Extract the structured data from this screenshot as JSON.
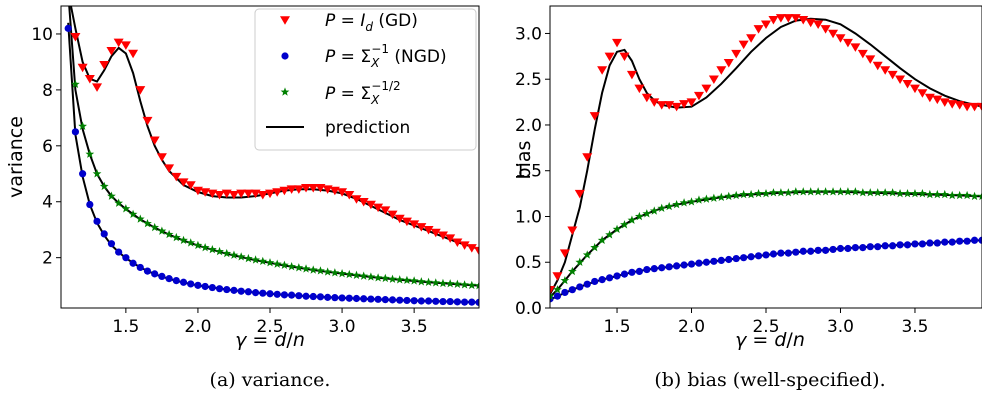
{
  "chart_data": [
    {
      "type": "scatter",
      "caption": "(a) variance.",
      "xlabel": "γ = d/n",
      "ylabel": "variance",
      "xlim": [
        1.05,
        3.95
      ],
      "ylim": [
        0.2,
        11.0
      ],
      "xticks": [
        1.5,
        2.0,
        2.5,
        3.0,
        3.5
      ],
      "yticks": [
        2,
        4,
        6,
        8,
        10
      ],
      "xtick_labels": [
        "1.5",
        "2.0",
        "2.5",
        "3.0",
        "3.5"
      ],
      "ytick_labels": [
        "2",
        "4",
        "6",
        "8",
        "10"
      ],
      "grid": false,
      "legend_position": "top-right",
      "legend": [
        {
          "label": "P = I_d (GD)",
          "main": "P = ",
          "italic": "I",
          "sub": "d",
          "rest": " (GD)",
          "marker": "triangle-down",
          "color": "#ff0000"
        },
        {
          "label": "P = Σ_X^-1 (NGD)",
          "main": "P = Σ",
          "sub": "X",
          "sup": "−1",
          "rest": " (NGD)",
          "marker": "circle",
          "color": "#0000cc"
        },
        {
          "label": "P = Σ_X^-1/2",
          "main": "P = Σ",
          "sub": "X",
          "sup": "−1/2",
          "rest": "",
          "marker": "star",
          "color": "#008000"
        },
        {
          "label": "prediction",
          "main": "prediction",
          "marker": "line",
          "color": "#000000"
        }
      ],
      "x": [
        1.1,
        1.15,
        1.2,
        1.25,
        1.3,
        1.35,
        1.4,
        1.45,
        1.5,
        1.55,
        1.6,
        1.65,
        1.7,
        1.75,
        1.8,
        1.85,
        1.9,
        1.95,
        2.0,
        2.05,
        2.1,
        2.15,
        2.2,
        2.25,
        2.3,
        2.35,
        2.4,
        2.45,
        2.5,
        2.55,
        2.6,
        2.65,
        2.7,
        2.75,
        2.8,
        2.85,
        2.9,
        2.95,
        3.0,
        3.05,
        3.1,
        3.15,
        3.2,
        3.25,
        3.3,
        3.35,
        3.4,
        3.45,
        3.5,
        3.55,
        3.6,
        3.65,
        3.7,
        3.75,
        3.8,
        3.85,
        3.9,
        3.95
      ],
      "series": [
        {
          "name": "P = I_d (GD)",
          "color": "#ff0000",
          "marker": "triangle-down",
          "values": [
            11.5,
            9.9,
            8.8,
            8.4,
            8.1,
            8.9,
            9.4,
            9.7,
            9.6,
            9.3,
            8.0,
            6.9,
            6.2,
            5.6,
            5.2,
            4.9,
            4.7,
            4.6,
            4.4,
            4.35,
            4.3,
            4.25,
            4.3,
            4.25,
            4.3,
            4.3,
            4.3,
            4.25,
            4.3,
            4.35,
            4.4,
            4.45,
            4.45,
            4.5,
            4.5,
            4.5,
            4.45,
            4.4,
            4.35,
            4.25,
            4.1,
            4.0,
            3.9,
            3.8,
            3.7,
            3.55,
            3.4,
            3.3,
            3.2,
            3.1,
            3.0,
            2.9,
            2.8,
            2.7,
            2.55,
            2.45,
            2.35,
            2.25
          ]
        },
        {
          "name": "P = Σ_X^-1 (NGD)",
          "color": "#0000cc",
          "marker": "circle",
          "values": [
            10.2,
            6.5,
            5.0,
            3.9,
            3.3,
            2.85,
            2.5,
            2.2,
            2.0,
            1.8,
            1.65,
            1.52,
            1.42,
            1.33,
            1.25,
            1.18,
            1.12,
            1.06,
            1.01,
            0.97,
            0.93,
            0.89,
            0.86,
            0.83,
            0.8,
            0.78,
            0.75,
            0.73,
            0.71,
            0.69,
            0.67,
            0.66,
            0.64,
            0.62,
            0.61,
            0.6,
            0.58,
            0.57,
            0.56,
            0.55,
            0.54,
            0.53,
            0.52,
            0.51,
            0.5,
            0.49,
            0.48,
            0.47,
            0.46,
            0.45,
            0.45,
            0.44,
            0.43,
            0.43,
            0.42,
            0.41,
            0.41,
            0.4
          ]
        },
        {
          "name": "P = Σ_X^-1/2",
          "color": "#008000",
          "marker": "star",
          "values": [
            11.3,
            8.2,
            6.7,
            5.7,
            5.0,
            4.55,
            4.2,
            3.95,
            3.75,
            3.55,
            3.38,
            3.22,
            3.08,
            2.95,
            2.83,
            2.72,
            2.62,
            2.53,
            2.44,
            2.36,
            2.29,
            2.22,
            2.15,
            2.09,
            2.03,
            1.97,
            1.92,
            1.87,
            1.82,
            1.77,
            1.73,
            1.68,
            1.64,
            1.6,
            1.56,
            1.53,
            1.49,
            1.46,
            1.43,
            1.4,
            1.37,
            1.34,
            1.31,
            1.28,
            1.26,
            1.23,
            1.21,
            1.19,
            1.17,
            1.14,
            1.12,
            1.1,
            1.08,
            1.07,
            1.05,
            1.03,
            1.01,
            1.0
          ]
        },
        {
          "name": "prediction",
          "color": "#000000",
          "marker": "line",
          "curves": [
            {
              "x": [
                1.1,
                1.15,
                1.2,
                1.25,
                1.3,
                1.35,
                1.4,
                1.45,
                1.5,
                1.55,
                1.6,
                1.65,
                1.7,
                1.75,
                1.8,
                1.9,
                2.0,
                2.1,
                2.2,
                2.3,
                2.4,
                2.5,
                2.6,
                2.7,
                2.8,
                2.9,
                3.0,
                3.1,
                3.2,
                3.3,
                3.4,
                3.5,
                3.6,
                3.7,
                3.8,
                3.9,
                3.95
              ],
              "values": [
                11.5,
                10.2,
                9.0,
                8.4,
                8.3,
                8.7,
                9.2,
                9.5,
                9.3,
                8.6,
                7.6,
                6.7,
                6.0,
                5.5,
                5.1,
                4.6,
                4.35,
                4.2,
                4.15,
                4.15,
                4.2,
                4.3,
                4.4,
                4.45,
                4.45,
                4.4,
                4.3,
                4.1,
                3.85,
                3.6,
                3.35,
                3.15,
                2.95,
                2.75,
                2.55,
                2.4,
                2.3
              ]
            },
            {
              "x": [
                1.1,
                1.15,
                1.2,
                1.25,
                1.3,
                1.35,
                1.4,
                1.45,
                1.5,
                1.6,
                1.7,
                1.8,
                1.9,
                2.0,
                2.2,
                2.4,
                2.6,
                2.8,
                3.0,
                3.2,
                3.4,
                3.6,
                3.8,
                3.95
              ],
              "values": [
                10.4,
                6.4,
                4.9,
                3.9,
                3.25,
                2.8,
                2.45,
                2.2,
                1.98,
                1.65,
                1.41,
                1.24,
                1.11,
                1.01,
                0.86,
                0.75,
                0.67,
                0.61,
                0.56,
                0.52,
                0.48,
                0.45,
                0.42,
                0.4
              ]
            },
            {
              "x": [
                1.1,
                1.15,
                1.2,
                1.25,
                1.3,
                1.35,
                1.4,
                1.45,
                1.5,
                1.6,
                1.7,
                1.8,
                1.9,
                2.0,
                2.2,
                2.4,
                2.6,
                2.8,
                3.0,
                3.2,
                3.4,
                3.6,
                3.8,
                3.95
              ],
              "values": [
                11.5,
                8.0,
                6.6,
                5.7,
                5.0,
                4.55,
                4.2,
                3.95,
                3.74,
                3.37,
                3.07,
                2.82,
                2.61,
                2.43,
                2.14,
                1.91,
                1.72,
                1.56,
                1.43,
                1.31,
                1.21,
                1.12,
                1.05,
                1.0
              ]
            }
          ]
        }
      ]
    },
    {
      "type": "scatter",
      "caption": "(b) bias (well-specified).",
      "xlabel": "γ = d/n",
      "ylabel": "bias",
      "xlim": [
        1.05,
        3.95
      ],
      "ylim": [
        0.0,
        3.3
      ],
      "xticks": [
        1.5,
        2.0,
        2.5,
        3.0,
        3.5
      ],
      "yticks": [
        0.0,
        0.5,
        1.0,
        1.5,
        2.0,
        2.5,
        3.0
      ],
      "xtick_labels": [
        "1.5",
        "2.0",
        "2.5",
        "3.0",
        "3.5"
      ],
      "ytick_labels": [
        "0.0",
        "0.5",
        "1.0",
        "1.5",
        "2.0",
        "2.5",
        "3.0"
      ],
      "grid": false,
      "x": [
        1.05,
        1.1,
        1.15,
        1.2,
        1.25,
        1.3,
        1.35,
        1.4,
        1.45,
        1.5,
        1.55,
        1.6,
        1.65,
        1.7,
        1.75,
        1.8,
        1.85,
        1.9,
        1.95,
        2.0,
        2.05,
        2.1,
        2.15,
        2.2,
        2.25,
        2.3,
        2.35,
        2.4,
        2.45,
        2.5,
        2.55,
        2.6,
        2.65,
        2.7,
        2.75,
        2.8,
        2.85,
        2.9,
        2.95,
        3.0,
        3.05,
        3.1,
        3.15,
        3.2,
        3.25,
        3.3,
        3.35,
        3.4,
        3.45,
        3.5,
        3.55,
        3.6,
        3.65,
        3.7,
        3.75,
        3.8,
        3.85,
        3.9,
        3.95
      ],
      "series": [
        {
          "name": "P = I_d (GD)",
          "color": "#ff0000",
          "marker": "triangle-down",
          "values": [
            0.2,
            0.35,
            0.6,
            0.85,
            1.25,
            1.65,
            2.1,
            2.6,
            2.75,
            2.9,
            2.75,
            2.55,
            2.4,
            2.3,
            2.25,
            2.22,
            2.22,
            2.2,
            2.23,
            2.25,
            2.32,
            2.4,
            2.5,
            2.6,
            2.68,
            2.78,
            2.88,
            2.95,
            3.05,
            3.1,
            3.15,
            3.17,
            3.17,
            3.17,
            3.15,
            3.12,
            3.1,
            3.05,
            3.0,
            2.95,
            2.9,
            2.85,
            2.78,
            2.72,
            2.65,
            2.6,
            2.55,
            2.5,
            2.45,
            2.4,
            2.35,
            2.3,
            2.28,
            2.25,
            2.23,
            2.22,
            2.2,
            2.2,
            2.2
          ]
        },
        {
          "name": "P = Σ_X^-1 (NGD)",
          "color": "#0000cc",
          "marker": "circle",
          "values": [
            0.1,
            0.13,
            0.17,
            0.2,
            0.23,
            0.26,
            0.29,
            0.31,
            0.33,
            0.35,
            0.37,
            0.39,
            0.4,
            0.42,
            0.43,
            0.44,
            0.45,
            0.46,
            0.47,
            0.48,
            0.49,
            0.5,
            0.51,
            0.52,
            0.53,
            0.54,
            0.55,
            0.56,
            0.57,
            0.58,
            0.59,
            0.6,
            0.6,
            0.61,
            0.62,
            0.62,
            0.63,
            0.63,
            0.64,
            0.65,
            0.65,
            0.66,
            0.66,
            0.67,
            0.67,
            0.68,
            0.68,
            0.69,
            0.69,
            0.7,
            0.7,
            0.71,
            0.71,
            0.72,
            0.72,
            0.73,
            0.73,
            0.74,
            0.74
          ]
        },
        {
          "name": "P = Σ_X^-1/2",
          "color": "#008000",
          "marker": "star",
          "values": [
            0.13,
            0.2,
            0.3,
            0.4,
            0.5,
            0.58,
            0.66,
            0.74,
            0.8,
            0.86,
            0.91,
            0.96,
            1.0,
            1.03,
            1.06,
            1.09,
            1.11,
            1.13,
            1.15,
            1.16,
            1.18,
            1.19,
            1.2,
            1.21,
            1.22,
            1.23,
            1.24,
            1.24,
            1.25,
            1.25,
            1.26,
            1.26,
            1.26,
            1.27,
            1.27,
            1.27,
            1.27,
            1.27,
            1.27,
            1.27,
            1.27,
            1.27,
            1.26,
            1.26,
            1.26,
            1.26,
            1.26,
            1.25,
            1.25,
            1.25,
            1.25,
            1.24,
            1.24,
            1.24,
            1.23,
            1.23,
            1.23,
            1.22,
            1.22
          ]
        },
        {
          "name": "prediction",
          "color": "#000000",
          "marker": "line",
          "curves": [
            {
              "x": [
                1.05,
                1.1,
                1.15,
                1.2,
                1.25,
                1.3,
                1.35,
                1.4,
                1.45,
                1.5,
                1.55,
                1.6,
                1.65,
                1.7,
                1.75,
                1.8,
                1.9,
                2.0,
                2.1,
                2.2,
                2.3,
                2.4,
                2.5,
                2.6,
                2.7,
                2.8,
                2.9,
                3.0,
                3.1,
                3.2,
                3.3,
                3.4,
                3.5,
                3.6,
                3.7,
                3.8,
                3.9,
                3.95
              ],
              "values": [
                0.15,
                0.3,
                0.5,
                0.8,
                1.1,
                1.5,
                1.95,
                2.35,
                2.65,
                2.8,
                2.82,
                2.7,
                2.5,
                2.35,
                2.27,
                2.22,
                2.19,
                2.2,
                2.3,
                2.45,
                2.62,
                2.8,
                2.95,
                3.07,
                3.14,
                3.16,
                3.15,
                3.1,
                3.0,
                2.88,
                2.75,
                2.62,
                2.5,
                2.4,
                2.32,
                2.26,
                2.22,
                2.2
              ]
            },
            {
              "x": [
                1.05,
                1.1,
                1.2,
                1.3,
                1.4,
                1.5,
                1.6,
                1.7,
                1.8,
                1.9,
                2.0,
                2.2,
                2.4,
                2.6,
                2.8,
                3.0,
                3.2,
                3.4,
                3.6,
                3.8,
                3.95
              ],
              "values": [
                0.09,
                0.13,
                0.2,
                0.26,
                0.31,
                0.35,
                0.39,
                0.42,
                0.44,
                0.46,
                0.48,
                0.52,
                0.56,
                0.6,
                0.62,
                0.65,
                0.67,
                0.69,
                0.71,
                0.73,
                0.74
              ]
            },
            {
              "x": [
                1.05,
                1.1,
                1.2,
                1.3,
                1.4,
                1.5,
                1.6,
                1.7,
                1.8,
                1.9,
                2.0,
                2.2,
                2.4,
                2.6,
                2.8,
                3.0,
                3.2,
                3.4,
                3.6,
                3.8,
                3.95
              ],
              "values": [
                0.12,
                0.2,
                0.4,
                0.58,
                0.74,
                0.86,
                0.96,
                1.03,
                1.09,
                1.13,
                1.16,
                1.21,
                1.24,
                1.26,
                1.27,
                1.27,
                1.26,
                1.25,
                1.24,
                1.23,
                1.22
              ]
            }
          ]
        }
      ]
    }
  ]
}
